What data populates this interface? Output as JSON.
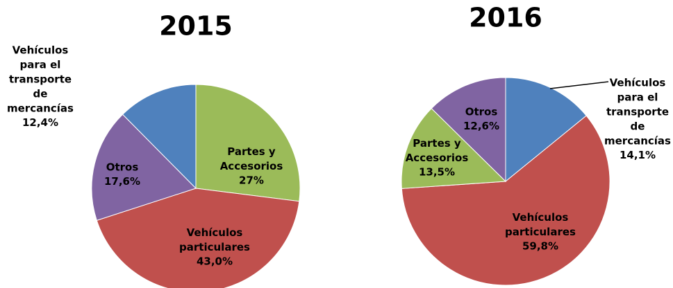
{
  "chart_data": [
    {
      "type": "pie",
      "title": "2015",
      "categories": [
        "Partes y Accesorios",
        "Vehículos particulares",
        "Otros",
        "Vehículos para el transporte de mercancías"
      ],
      "values": [
        27,
        43.0,
        17.6,
        12.4
      ],
      "value_labels": [
        "27%",
        "43,0%",
        "17,6%",
        "12,4%"
      ],
      "colors": [
        "#9bbb59",
        "#c0504d",
        "#8064a2",
        "#4f81bd"
      ]
    },
    {
      "type": "pie",
      "title": "2016",
      "categories": [
        "Vehículos para el transporte de mercancías",
        "Vehículos particulares",
        "Partes y Accesorios",
        "Otros"
      ],
      "values": [
        14.1,
        59.8,
        13.5,
        12.6
      ],
      "value_labels": [
        "14,1%",
        "59,8%",
        "13,5%",
        "12,6%"
      ],
      "colors": [
        "#4f81bd",
        "#c0504d",
        "#9bbb59",
        "#8064a2"
      ]
    }
  ]
}
